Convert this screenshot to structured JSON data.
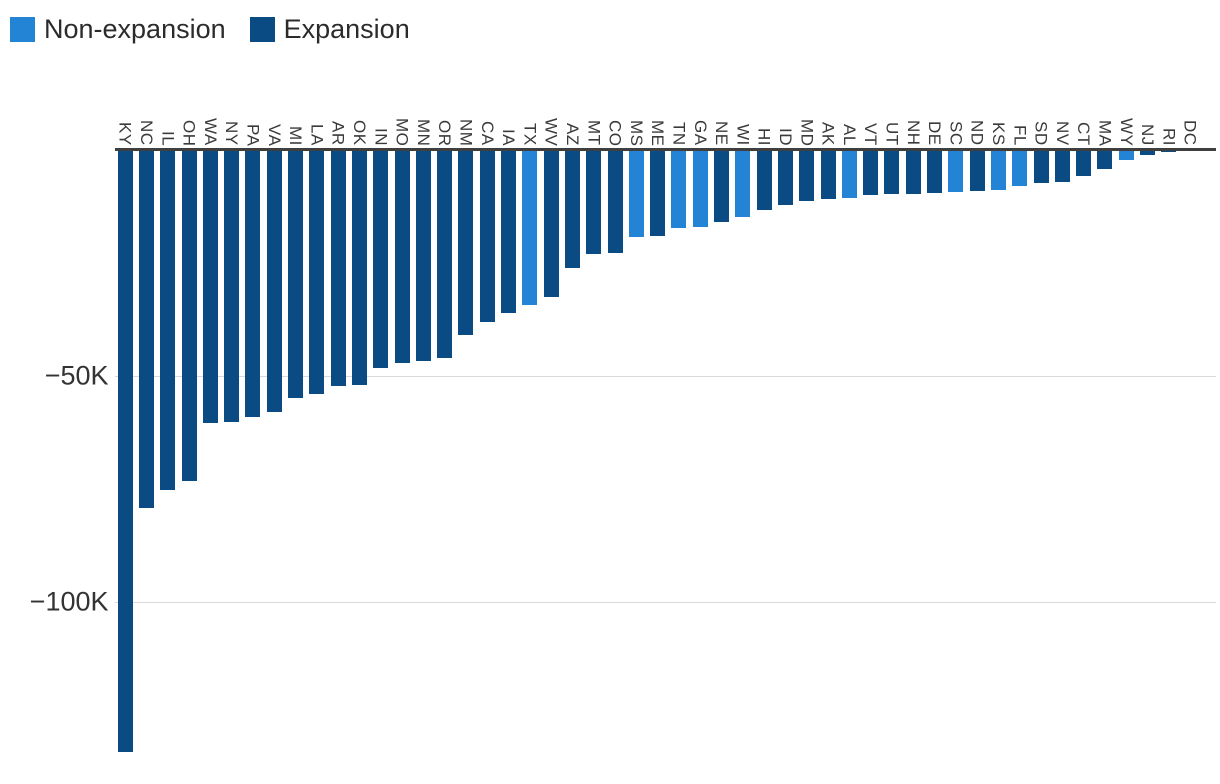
{
  "legend": {
    "items": [
      {
        "label": "Non-expansion",
        "color": "#2383d5",
        "key": "non_expansion"
      },
      {
        "label": "Expansion",
        "color": "#094b82",
        "key": "expansion"
      }
    ]
  },
  "chart_data": {
    "type": "bar",
    "title": "",
    "xlabel": "",
    "ylabel": "",
    "value_unit": "people",
    "orientation": "vertical-negative",
    "grid": "horizontal",
    "legend_position": "top-left",
    "ylim": [
      -140000,
      0
    ],
    "colors": {
      "non_expansion": "#2383d5",
      "expansion": "#094b82"
    },
    "yticks": [
      {
        "label": "−50K",
        "value": -50000
      },
      {
        "label": "−100K",
        "value": -100000
      }
    ],
    "points": [
      {
        "state": "KY",
        "value": -133000,
        "group": "expansion"
      },
      {
        "state": "NC",
        "value": -79000,
        "group": "expansion"
      },
      {
        "state": "IL",
        "value": -75000,
        "group": "expansion"
      },
      {
        "state": "OH",
        "value": -73000,
        "group": "expansion"
      },
      {
        "state": "WA",
        "value": -60200,
        "group": "expansion"
      },
      {
        "state": "NY",
        "value": -60000,
        "group": "expansion"
      },
      {
        "state": "PA",
        "value": -58900,
        "group": "expansion"
      },
      {
        "state": "VA",
        "value": -57800,
        "group": "expansion"
      },
      {
        "state": "MI",
        "value": -54700,
        "group": "expansion"
      },
      {
        "state": "LA",
        "value": -53700,
        "group": "expansion"
      },
      {
        "state": "AR",
        "value": -52000,
        "group": "expansion"
      },
      {
        "state": "OK",
        "value": -51700,
        "group": "expansion"
      },
      {
        "state": "IN",
        "value": -48000,
        "group": "expansion"
      },
      {
        "state": "MO",
        "value": -47000,
        "group": "expansion"
      },
      {
        "state": "MN",
        "value": -46500,
        "group": "expansion"
      },
      {
        "state": "OR",
        "value": -45800,
        "group": "expansion"
      },
      {
        "state": "NM",
        "value": -40700,
        "group": "expansion"
      },
      {
        "state": "CA",
        "value": -37800,
        "group": "expansion"
      },
      {
        "state": "IA",
        "value": -35800,
        "group": "expansion"
      },
      {
        "state": "TX",
        "value": -34100,
        "group": "non_expansion"
      },
      {
        "state": "WV",
        "value": -32400,
        "group": "expansion"
      },
      {
        "state": "AZ",
        "value": -25900,
        "group": "expansion"
      },
      {
        "state": "MT",
        "value": -22700,
        "group": "expansion"
      },
      {
        "state": "CO",
        "value": -22500,
        "group": "expansion"
      },
      {
        "state": "MS",
        "value": -19100,
        "group": "non_expansion"
      },
      {
        "state": "ME",
        "value": -18700,
        "group": "expansion"
      },
      {
        "state": "TN",
        "value": -17000,
        "group": "non_expansion"
      },
      {
        "state": "GA",
        "value": -16900,
        "group": "non_expansion"
      },
      {
        "state": "NE",
        "value": -15800,
        "group": "expansion"
      },
      {
        "state": "WI",
        "value": -14700,
        "group": "non_expansion"
      },
      {
        "state": "HI",
        "value": -13000,
        "group": "expansion"
      },
      {
        "state": "ID",
        "value": -11900,
        "group": "expansion"
      },
      {
        "state": "MD",
        "value": -11000,
        "group": "expansion"
      },
      {
        "state": "AK",
        "value": -10700,
        "group": "expansion"
      },
      {
        "state": "AL",
        "value": -10400,
        "group": "non_expansion"
      },
      {
        "state": "VT",
        "value": -9800,
        "group": "expansion"
      },
      {
        "state": "UT",
        "value": -9600,
        "group": "expansion"
      },
      {
        "state": "NH",
        "value": -9500,
        "group": "expansion"
      },
      {
        "state": "DE",
        "value": -9400,
        "group": "expansion"
      },
      {
        "state": "SC",
        "value": -9100,
        "group": "non_expansion"
      },
      {
        "state": "ND",
        "value": -8900,
        "group": "expansion"
      },
      {
        "state": "KS",
        "value": -8700,
        "group": "non_expansion"
      },
      {
        "state": "FL",
        "value": -7800,
        "group": "non_expansion"
      },
      {
        "state": "SD",
        "value": -7000,
        "group": "expansion"
      },
      {
        "state": "NV",
        "value": -6800,
        "group": "expansion"
      },
      {
        "state": "CT",
        "value": -5600,
        "group": "expansion"
      },
      {
        "state": "MA",
        "value": -3900,
        "group": "expansion"
      },
      {
        "state": "WY",
        "value": -1900,
        "group": "non_expansion"
      },
      {
        "state": "NJ",
        "value": -800,
        "group": "expansion"
      },
      {
        "state": "RI",
        "value": -300,
        "group": "expansion"
      },
      {
        "state": "DC",
        "value": -100,
        "group": "expansion"
      }
    ]
  }
}
